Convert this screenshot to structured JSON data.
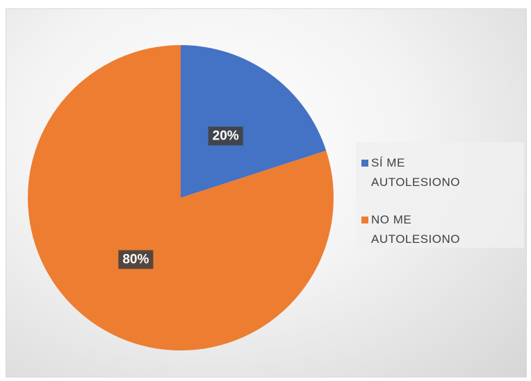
{
  "chart_data": {
    "type": "pie",
    "categories": [
      "SÍ ME AUTOLESIONO",
      "NO ME AUTOLESIONO"
    ],
    "values": [
      20,
      80
    ],
    "value_labels": [
      "20%",
      "80%"
    ],
    "colors": [
      "#4472c4",
      "#ed7d31"
    ],
    "legend": "right"
  }
}
